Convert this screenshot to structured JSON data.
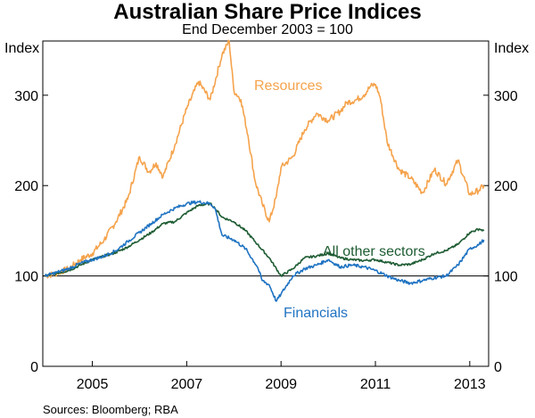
{
  "chart_data": {
    "type": "line",
    "title": "Australian Share Price Indices",
    "subtitle": "End December 2003 = 100",
    "ylabel_left": "Index",
    "ylabel_right": "Index",
    "source": "Sources: Bloomberg; RBA",
    "ylim": [
      0,
      360
    ],
    "yticks": [
      "0",
      "100",
      "200",
      "300"
    ],
    "xticks": [
      "2005",
      "2007",
      "2009",
      "2011",
      "2013"
    ],
    "xlim": [
      2003.95,
      2013.4
    ],
    "reference_line": 100,
    "colors": {
      "Resources": "#f5a34c",
      "All other sectors": "#1e5c33",
      "Financials": "#1f73c2"
    },
    "series": [
      {
        "name": "Resources",
        "label": "Resources",
        "x": [
          2004.0,
          2004.25,
          2004.5,
          2004.75,
          2005.0,
          2005.25,
          2005.5,
          2005.75,
          2006.0,
          2006.2,
          2006.35,
          2006.5,
          2006.75,
          2007.0,
          2007.25,
          2007.5,
          2007.75,
          2007.9,
          2008.0,
          2008.15,
          2008.3,
          2008.45,
          2008.6,
          2008.75,
          2008.9,
          2009.0,
          2009.25,
          2009.5,
          2009.75,
          2010.0,
          2010.25,
          2010.4,
          2010.6,
          2010.75,
          2010.9,
          2011.0,
          2011.1,
          2011.25,
          2011.5,
          2011.75,
          2012.0,
          2012.25,
          2012.5,
          2012.75,
          2013.0,
          2013.2,
          2013.3
        ],
        "values": [
          100,
          103,
          108,
          118,
          125,
          140,
          160,
          185,
          232,
          215,
          225,
          210,
          245,
          285,
          315,
          295,
          345,
          360,
          305,
          295,
          255,
          205,
          180,
          160,
          188,
          220,
          232,
          262,
          280,
          272,
          282,
          292,
          295,
          300,
          310,
          312,
          298,
          248,
          218,
          208,
          192,
          218,
          202,
          228,
          190,
          195,
          200
        ]
      },
      {
        "name": "All other sectors",
        "label": "All other sectors",
        "x": [
          2004.0,
          2004.25,
          2004.5,
          2004.75,
          2005.0,
          2005.25,
          2005.5,
          2005.75,
          2006.0,
          2006.25,
          2006.5,
          2006.75,
          2007.0,
          2007.25,
          2007.5,
          2007.6,
          2007.75,
          2008.0,
          2008.25,
          2008.5,
          2008.75,
          2009.0,
          2009.25,
          2009.5,
          2009.75,
          2010.0,
          2010.25,
          2010.5,
          2010.75,
          2011.0,
          2011.25,
          2011.5,
          2011.75,
          2012.0,
          2012.25,
          2012.5,
          2012.75,
          2013.0,
          2013.2,
          2013.3
        ],
        "values": [
          100,
          103,
          106,
          112,
          118,
          122,
          126,
          132,
          140,
          148,
          158,
          160,
          170,
          178,
          180,
          175,
          165,
          160,
          150,
          135,
          120,
          100,
          108,
          120,
          122,
          125,
          120,
          118,
          117,
          118,
          115,
          112,
          113,
          118,
          125,
          128,
          135,
          148,
          152,
          150
        ]
      },
      {
        "name": "Financials",
        "label": "Financials",
        "x": [
          2004.0,
          2004.25,
          2004.5,
          2004.75,
          2005.0,
          2005.25,
          2005.5,
          2005.75,
          2006.0,
          2006.25,
          2006.5,
          2006.75,
          2007.0,
          2007.25,
          2007.5,
          2007.6,
          2007.75,
          2008.0,
          2008.25,
          2008.5,
          2008.6,
          2008.75,
          2008.9,
          2009.0,
          2009.25,
          2009.5,
          2009.75,
          2010.0,
          2010.25,
          2010.5,
          2010.75,
          2011.0,
          2011.25,
          2011.5,
          2011.75,
          2012.0,
          2012.25,
          2012.5,
          2012.75,
          2013.0,
          2013.2,
          2013.3
        ],
        "values": [
          100,
          104,
          108,
          114,
          118,
          122,
          128,
          138,
          148,
          158,
          168,
          175,
          180,
          182,
          180,
          175,
          145,
          140,
          130,
          110,
          95,
          90,
          72,
          80,
          100,
          108,
          112,
          118,
          110,
          112,
          110,
          106,
          100,
          95,
          92,
          95,
          98,
          100,
          112,
          130,
          135,
          140
        ]
      }
    ]
  }
}
